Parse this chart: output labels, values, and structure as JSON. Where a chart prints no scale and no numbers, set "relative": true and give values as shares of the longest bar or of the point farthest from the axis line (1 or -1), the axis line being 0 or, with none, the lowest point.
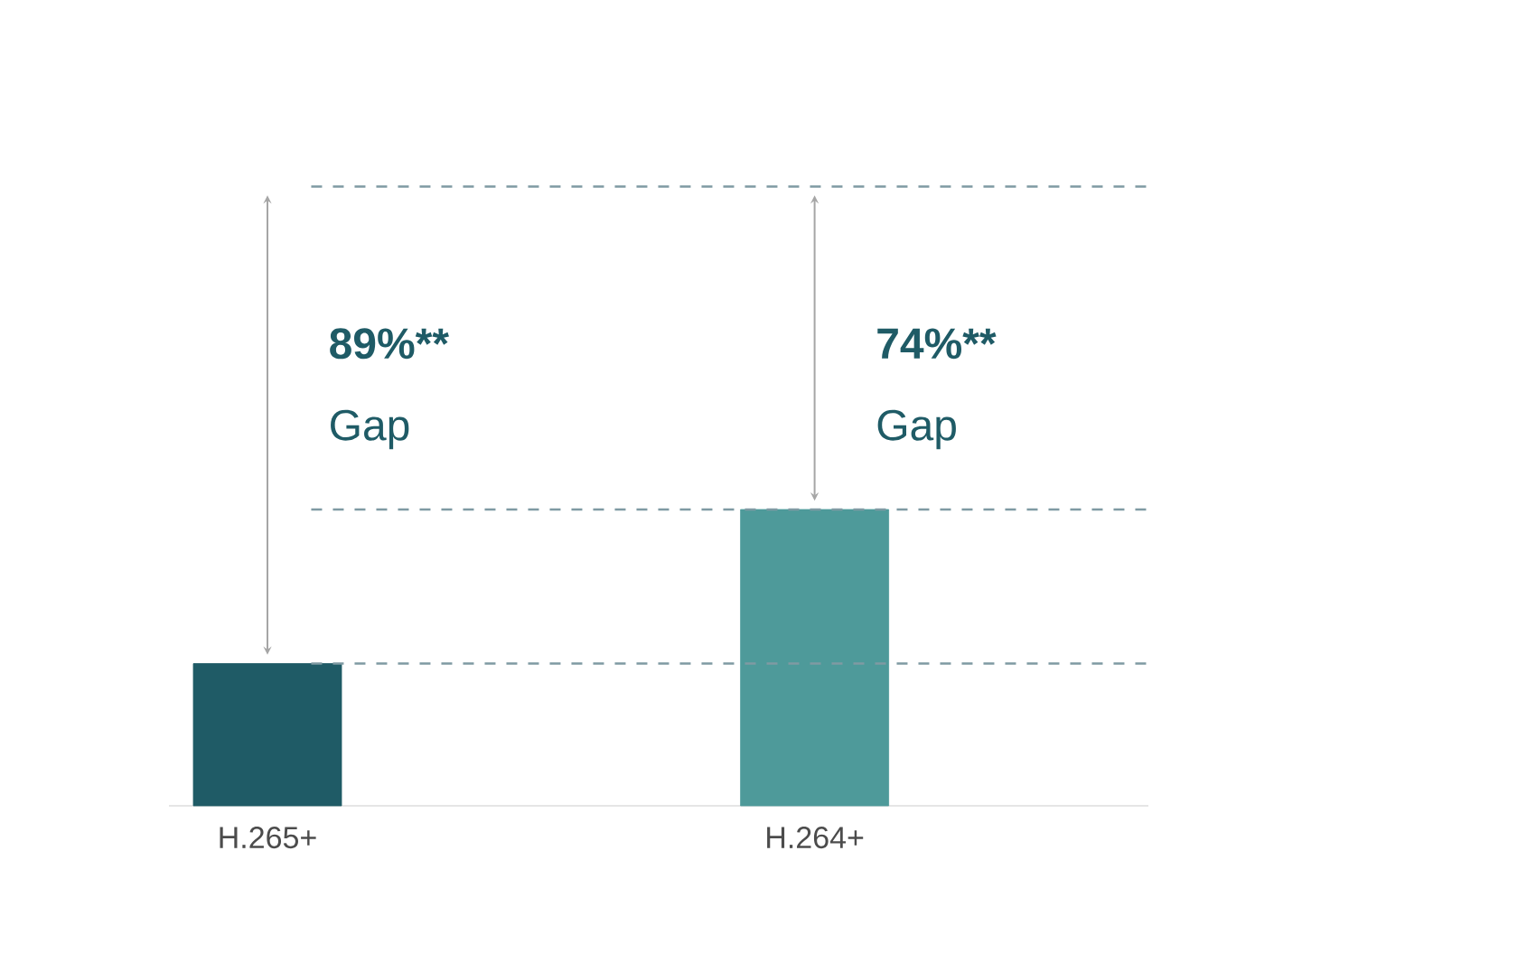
{
  "chart_data": {
    "type": "bar",
    "relative": true,
    "categories": [
      "H.265+",
      "H.264+"
    ],
    "values": [
      0.48,
      1
    ],
    "colors": [
      "#1f5b66",
      "#4e9a9a"
    ],
    "ref_lines": [
      {
        "axis": "y",
        "value": 2.09,
        "color": "#7f9aa3",
        "line_style": "dashed"
      },
      {
        "axis": "y",
        "value": 1,
        "color": "#7f9aa3",
        "line_style": "dashed"
      },
      {
        "axis": "y",
        "value": 0.48,
        "color": "#7f9aa3",
        "line_style": "dashed"
      }
    ],
    "annotations": [
      "89%**",
      "Gap",
      "74%**",
      "Gap"
    ]
  }
}
